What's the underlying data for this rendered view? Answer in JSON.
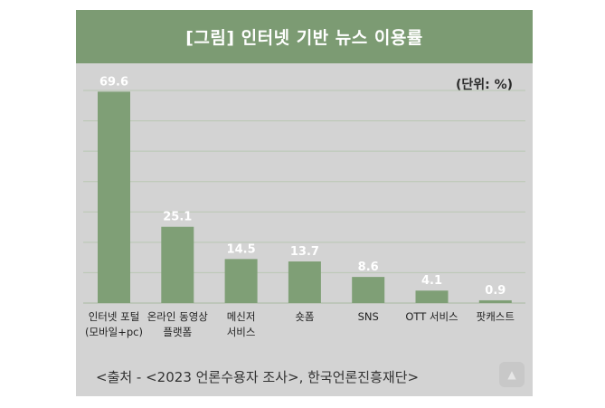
{
  "card": {
    "title": "[그림] 인터넷 기반 뉴스 이용률",
    "unit": "(단위: %)",
    "source": "<출처 - <2023 언론수용자 조사>, 한국언론진흥재단>"
  },
  "colors": {
    "title_bg": "#7c9b73",
    "bar": "#7f9f76",
    "card_bg": "#d3d3d3",
    "gridline": "#b9c7b3"
  },
  "icons": {
    "scroll_top": "chevron-up-icon"
  },
  "chart_data": {
    "type": "bar",
    "title": "[그림] 인터넷 기반 뉴스 이용률",
    "xlabel": "",
    "ylabel": "(단위: %)",
    "ylim": [
      0,
      70
    ],
    "grid": true,
    "categories": [
      [
        "인터넷 포털",
        "(모바일+pc)"
      ],
      [
        "온라인 동영상",
        "플랫폼"
      ],
      [
        "메신저",
        "서비스"
      ],
      [
        "숏폼"
      ],
      [
        "SNS"
      ],
      [
        "OTT 서비스"
      ],
      [
        "팟캐스트"
      ]
    ],
    "values": [
      69.6,
      25.1,
      14.5,
      13.7,
      8.6,
      4.1,
      0.9
    ],
    "value_labels": [
      "69.6",
      "25.1",
      "14.5",
      "13.7",
      "8.6",
      "4.1",
      "0.9"
    ]
  }
}
